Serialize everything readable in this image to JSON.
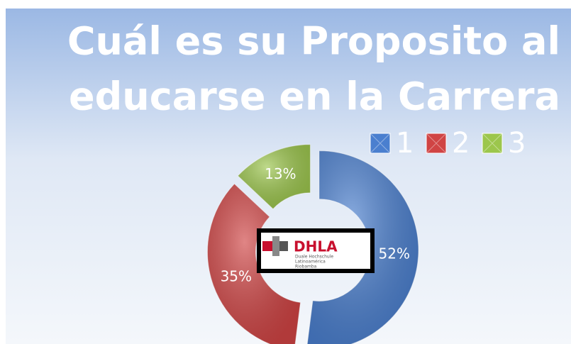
{
  "chart_data": {
    "type": "doughnut",
    "title": [
      "Cuál es su Proposito al",
      "educarse en la Carrera"
    ],
    "categories": [
      "1",
      "2",
      "3"
    ],
    "values": [
      52,
      35,
      13
    ],
    "value_labels": [
      "52%",
      "35%",
      "13%"
    ],
    "colors": [
      "#4a7fcf",
      "#d04444",
      "#9cc64c"
    ],
    "legend": "top-right"
  },
  "logo": {
    "name": "DHLA",
    "lines": [
      "Duale Hochschule",
      "Latinoamérica",
      "Riobamba"
    ]
  }
}
